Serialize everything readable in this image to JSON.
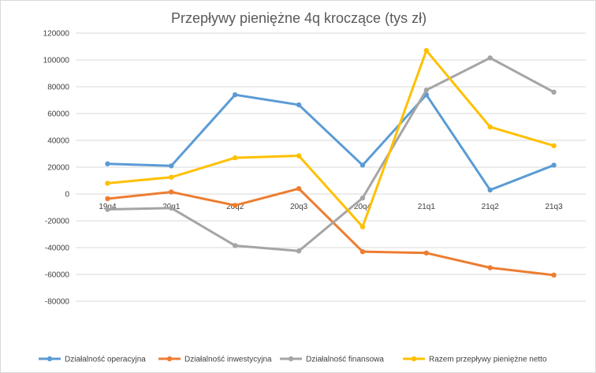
{
  "chart_data": {
    "type": "line",
    "title": "Przepływy pieniężne 4q kroczące (tys zł)",
    "xlabel": "",
    "ylabel": "",
    "categories": [
      "19q4",
      "20q1",
      "20q2",
      "20q3",
      "20q4",
      "21q1",
      "21q2",
      "21q3"
    ],
    "ylim": [
      -80000,
      120000
    ],
    "yticks": [
      120000,
      100000,
      80000,
      60000,
      40000,
      20000,
      0,
      -20000,
      -40000,
      -60000,
      -80000
    ],
    "grid": true,
    "legend_position": "bottom",
    "series": [
      {
        "name": "Działalność operacyjna",
        "color": "#5B9BD5",
        "values": [
          22500,
          21000,
          74000,
          66500,
          21500,
          74000,
          3000,
          21500
        ]
      },
      {
        "name": "Działalność inwestycyjna",
        "color": "#ED7D31",
        "values": [
          -3500,
          1500,
          -8500,
          4000,
          -43000,
          -44000,
          -55000,
          -60500
        ]
      },
      {
        "name": "Działalność finansowa",
        "color": "#A5A5A5",
        "values": [
          -11500,
          -10500,
          -38500,
          -42500,
          -3000,
          77500,
          101500,
          76000
        ]
      },
      {
        "name": "Razem przepływy pieniężne netto",
        "color": "#FFC000",
        "values": [
          8000,
          12500,
          27000,
          28500,
          -24500,
          107000,
          50000,
          36000
        ]
      }
    ]
  }
}
